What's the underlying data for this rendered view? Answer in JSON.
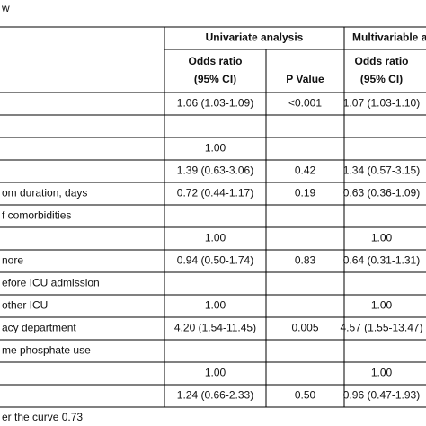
{
  "title": "w",
  "table": {
    "group_headers": [
      "Univariate analysis",
      "Multivariable a"
    ],
    "sub_headers": [
      [
        "Odds ratio",
        "(95% CI)"
      ],
      [
        "P Value"
      ],
      [
        "Odds ratio",
        "(95% CI)"
      ]
    ],
    "rows": [
      [
        null,
        "1.06 (1.03-1.09)",
        "<0.001",
        "1.07 (1.03-1.10)"
      ],
      [
        null,
        null,
        null,
        null
      ],
      [
        null,
        "1.00",
        null,
        null
      ],
      [
        null,
        "1.39 (0.63-3.06)",
        "0.42",
        "1.34 (0.57-3.15)"
      ],
      [
        "om duration, days",
        "0.72 (0.44-1.17)",
        "0.19",
        "0.63 (0.36-1.09)"
      ],
      [
        "f comorbidities",
        null,
        null,
        null
      ],
      [
        null,
        "1.00",
        null,
        "1.00"
      ],
      [
        "nore",
        "0.94 (0.50-1.74)",
        "0.83",
        "0.64 (0.31-1.31)"
      ],
      [
        "efore ICU admission",
        null,
        null,
        null
      ],
      [
        "other ICU",
        "1.00",
        null,
        "1.00"
      ],
      [
        "acy department",
        "4.20 (1.54-11.45)",
        "0.005",
        "4.57 (1.55-13.47)"
      ],
      [
        "me phosphate use",
        null,
        null,
        null
      ],
      [
        null,
        "1.00",
        null,
        "1.00"
      ],
      [
        null,
        "1.24 (0.66-2.33)",
        "0.50",
        "0.96 (0.47-1.93)"
      ]
    ]
  },
  "footer": "er the curve 0.73"
}
